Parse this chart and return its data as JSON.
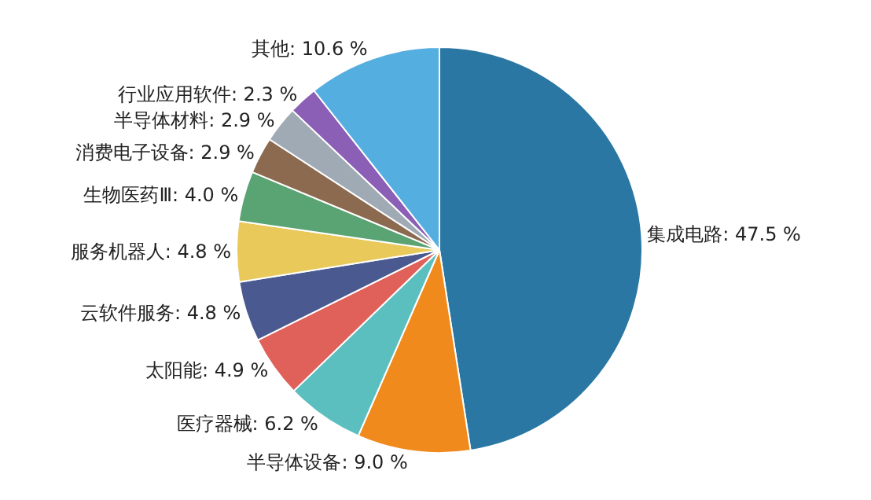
{
  "chart_data": {
    "type": "pie",
    "categories": [
      "集成电路",
      "半导体设备",
      "医疗器械",
      "太阳能",
      "云软件服务",
      "服务机器人",
      "生物医药Ⅲ",
      "消费电子设备",
      "半导体材料",
      "行业应用软件",
      "其他"
    ],
    "values": [
      47.5,
      9.0,
      6.2,
      4.9,
      4.8,
      4.8,
      4.0,
      2.9,
      2.9,
      2.3,
      10.6
    ],
    "value_labels": [
      "47.5 %",
      "9.0 %",
      "6.2 %",
      "4.9 %",
      "4.8 %",
      "4.8 %",
      "4.0 %",
      "2.9 %",
      "2.9 %",
      "2.3 %",
      "10.6 %"
    ],
    "colors": [
      "#2a77a3",
      "#f08a1c",
      "#5cbfbf",
      "#e0605a",
      "#4a5a90",
      "#e8c95a",
      "#5aa373",
      "#8c6a50",
      "#a0aab4",
      "#8a5fb5",
      "#55aee0"
    ],
    "legend": false
  }
}
